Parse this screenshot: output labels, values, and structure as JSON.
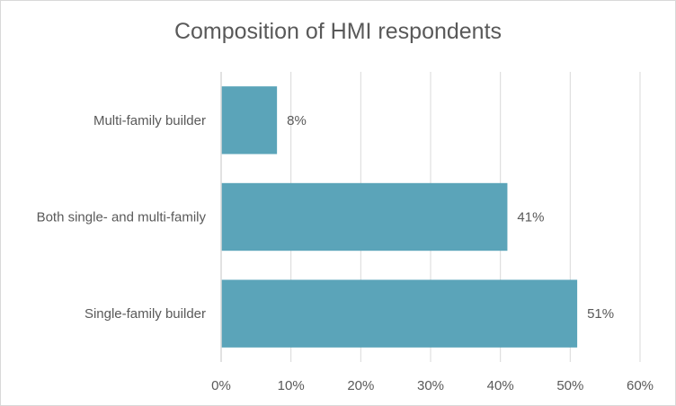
{
  "chart_data": {
    "type": "bar",
    "orientation": "horizontal",
    "title": "Composition of HMI respondents",
    "categories": [
      "Multi-family builder",
      "Both single- and multi-family",
      "Single-family builder"
    ],
    "values": [
      8,
      41,
      51
    ],
    "data_labels": [
      "8%",
      "41%",
      "51%"
    ],
    "xlim": [
      0,
      60
    ],
    "x_ticks": [
      0,
      10,
      20,
      30,
      40,
      50,
      60
    ],
    "x_tick_labels": [
      "0%",
      "10%",
      "20%",
      "30%",
      "40%",
      "50%",
      "60%"
    ],
    "xlabel": "",
    "ylabel": "",
    "grid": "vertical",
    "legend": "none",
    "colors": {
      "bar": "#5ba4b9",
      "gridline": "#d9d9d9",
      "text": "#595959"
    }
  }
}
